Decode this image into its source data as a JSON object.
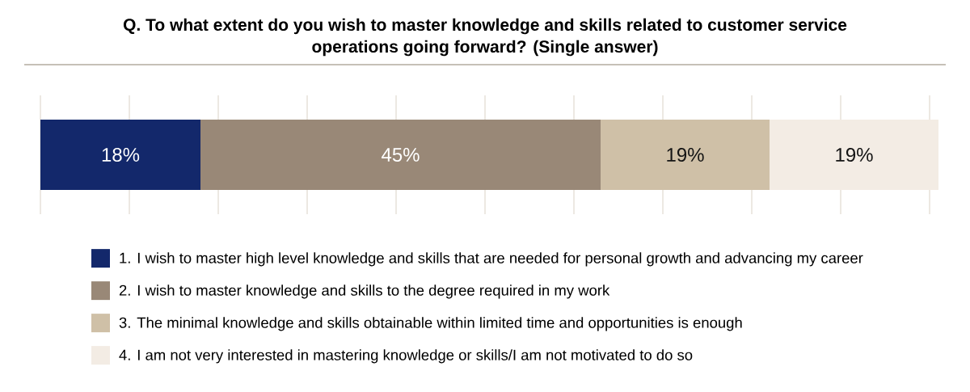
{
  "chart_data": {
    "type": "bar",
    "title": "Q. To what extent do you wish to master knowledge and skills related to customer service operations going forward? (Single answer)",
    "orientation": "horizontal",
    "stacked": true,
    "categories": [
      null
    ],
    "series": [
      {
        "name": "1. I wish to master high level knowledge and skills that are needed for personal growth and advancing my career",
        "color": "#13286b",
        "values": [
          18
        ],
        "value_labels": [
          "18%"
        ]
      },
      {
        "name": "2. I wish to master knowledge and skills to the degree required in my work",
        "color": "#998877",
        "values": [
          45
        ],
        "value_labels": [
          "45%"
        ]
      },
      {
        "name": "3. The minimal knowledge and skills obtainable within limited time and opportunities is enough",
        "color": "#cfc0a7",
        "values": [
          19
        ],
        "value_labels": [
          "19%"
        ]
      },
      {
        "name": "4. I am not very interested in mastering knowledge or skills/I am not motivated to do so",
        "color": "#f3ece4",
        "values": [
          19
        ],
        "value_labels": [
          "19%"
        ]
      }
    ],
    "grid": "x",
    "tick_labels": false,
    "legend": "bottom"
  }
}
